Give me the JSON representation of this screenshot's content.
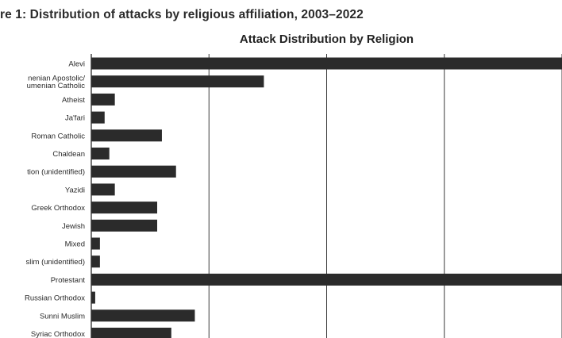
{
  "figure_caption": "re 1: Distribution of attacks by religious affiliation, 2003–2022",
  "colors": {
    "bar": "#2b2b2b",
    "grid": "#3a3a3a",
    "text": "#2a2a2a",
    "background": "#ffffff"
  },
  "chart_data": {
    "type": "bar",
    "orientation": "horizontal",
    "title": "Attack Distribution by Religion",
    "xlabel": "",
    "ylabel": "",
    "grid": true,
    "xlim": [
      0,
      60
    ],
    "categories": [
      "Alevi",
      "nenian Apostolic/\numenian Catholic",
      "Atheist",
      "Ja'fari",
      "Roman Catholic",
      "Chaldean",
      "tion (unidentified)",
      "Yazidi",
      "Greek Orthodox",
      "Jewish",
      "Mixed",
      "slim (unidentified)",
      "Protestant",
      "Russian Orthodox",
      "Sunni Muslim",
      "Syriac Orthodox"
    ],
    "values": [
      60,
      22,
      3,
      1.7,
      9,
      2.3,
      10.8,
      3,
      8.4,
      8.4,
      1.1,
      1.1,
      60,
      0.5,
      13.2,
      10.2
    ]
  }
}
